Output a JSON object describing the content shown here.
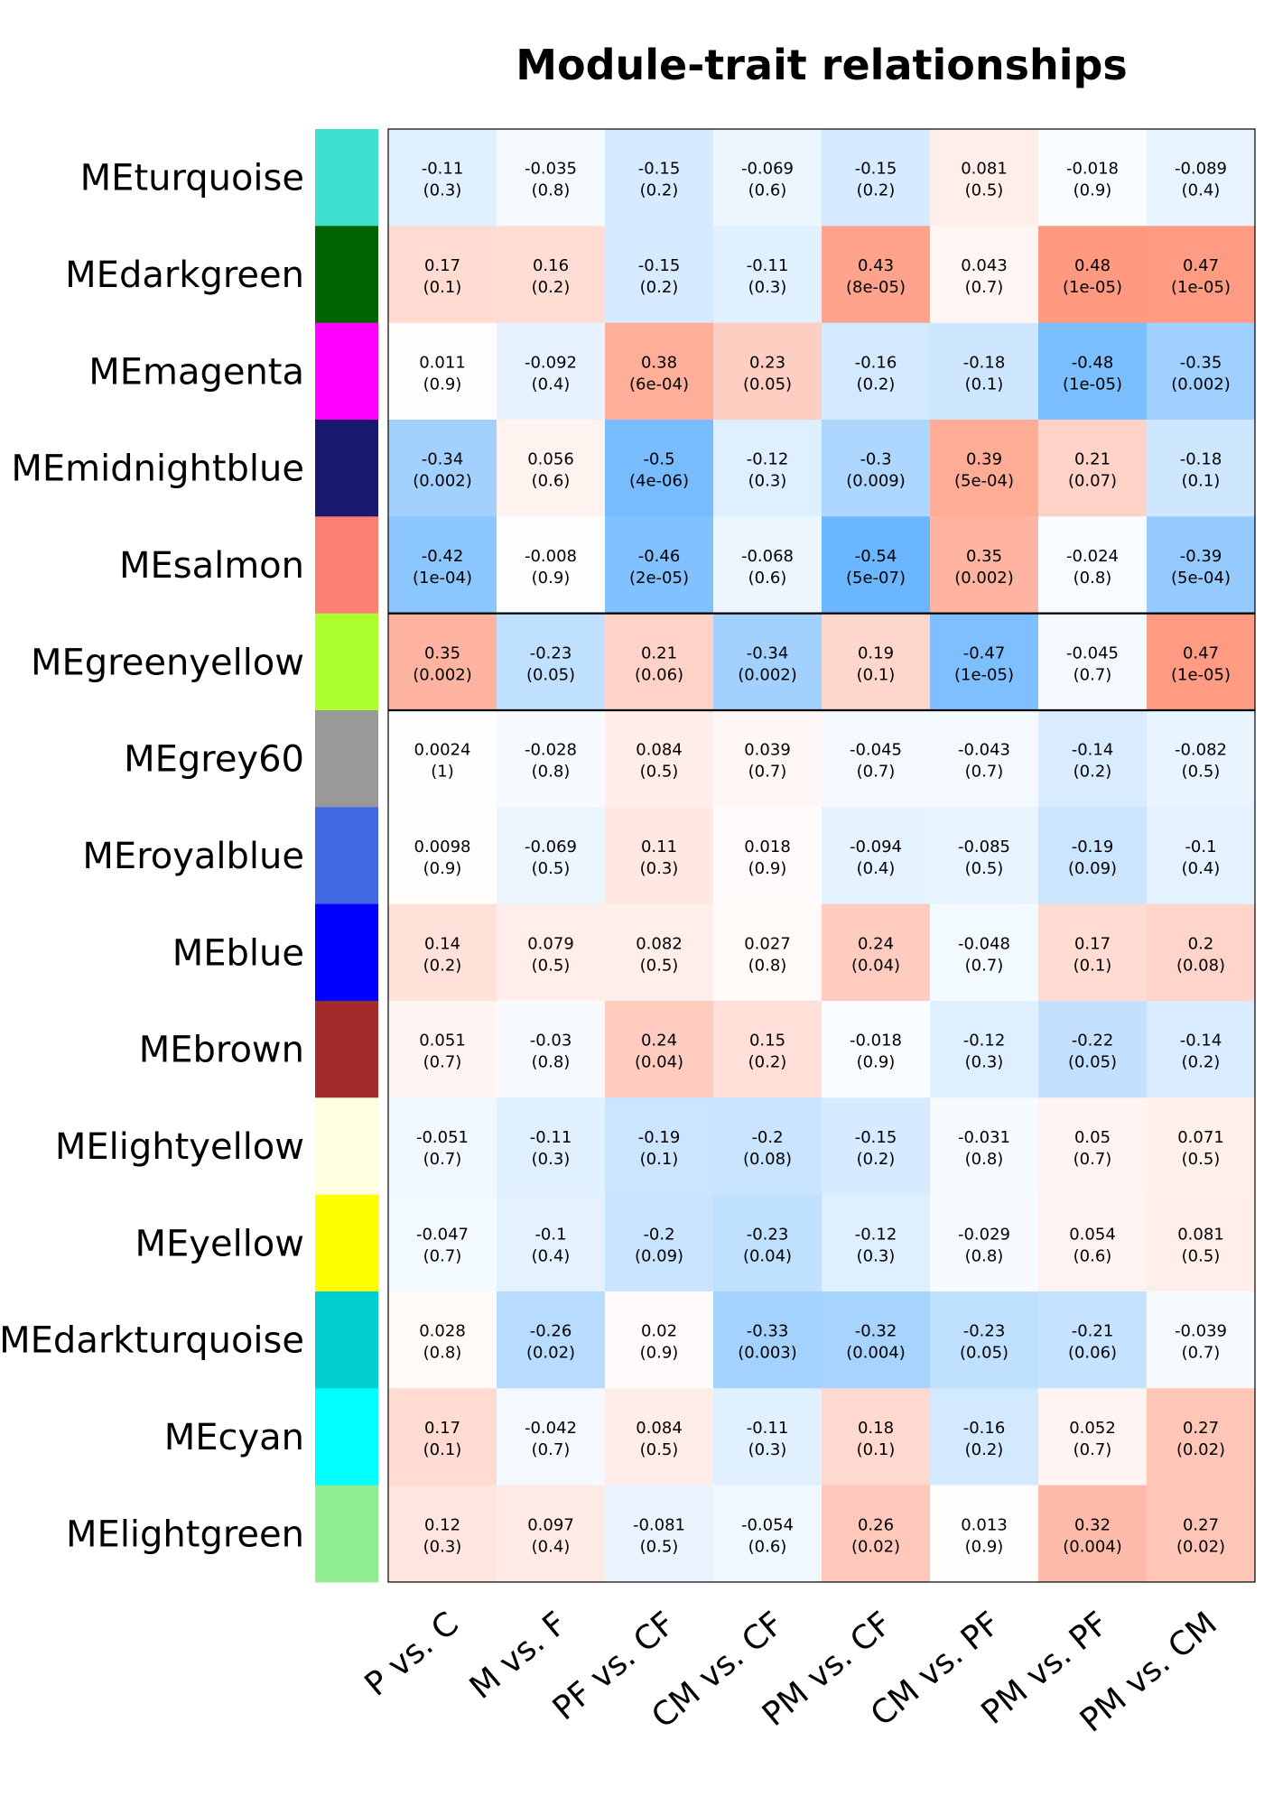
{
  "chart_data": {
    "type": "heatmap",
    "title": "Module-trait relationships",
    "rows": [
      "MEturquoise",
      "MEdarkgreen",
      "MEmagenta",
      "MEmidnightblue",
      "MEsalmon",
      "MEgreenyellow",
      "MEgrey60",
      "MEroyalblue",
      "MEblue",
      "MEbrown",
      "MElightyellow",
      "MEyellow",
      "MEdarkturquoise",
      "MEcyan",
      "MElightgreen"
    ],
    "row_colors": [
      "#40E0D0",
      "#006400",
      "#FF00FF",
      "#191970",
      "#FA8072",
      "#ADFF2F",
      "#999999",
      "#4169E1",
      "#0000FF",
      "#A52A2A",
      "#FFFFE0",
      "#FFFF00",
      "#00CED1",
      "#00FFFF",
      "#90EE90"
    ],
    "columns": [
      "P vs. C",
      "M vs. F",
      "PF vs. CF",
      "CM vs. CF",
      "PM vs. CF",
      "CM vs. PF",
      "PM vs. PF",
      "PM vs. CM"
    ],
    "values": [
      [
        "-0.11",
        "-0.035",
        "-0.15",
        "-0.069",
        "-0.15",
        "0.081",
        "-0.018",
        "-0.089"
      ],
      [
        "0.17",
        "0.16",
        "-0.15",
        "-0.11",
        "0.43",
        "0.043",
        "0.48",
        "0.47"
      ],
      [
        "0.011",
        "-0.092",
        "0.38",
        "0.23",
        "-0.16",
        "-0.18",
        "-0.48",
        "-0.35"
      ],
      [
        "-0.34",
        "0.056",
        "-0.5",
        "-0.12",
        "-0.3",
        "0.39",
        "0.21",
        "-0.18"
      ],
      [
        "-0.42",
        "-0.008",
        "-0.46",
        "-0.068",
        "-0.54",
        "0.35",
        "-0.024",
        "-0.39"
      ],
      [
        "0.35",
        "-0.23",
        "0.21",
        "-0.34",
        "0.19",
        "-0.47",
        "-0.045",
        "0.47"
      ],
      [
        "0.0024",
        "-0.028",
        "0.084",
        "0.039",
        "-0.045",
        "-0.043",
        "-0.14",
        "-0.082"
      ],
      [
        "0.0098",
        "-0.069",
        "0.11",
        "0.018",
        "-0.094",
        "-0.085",
        "-0.19",
        "-0.1"
      ],
      [
        "0.14",
        "0.079",
        "0.082",
        "0.027",
        "0.24",
        "-0.048",
        "0.17",
        "0.2"
      ],
      [
        "0.051",
        "-0.03",
        "0.24",
        "0.15",
        "-0.018",
        "-0.12",
        "-0.22",
        "-0.14"
      ],
      [
        "-0.051",
        "-0.11",
        "-0.19",
        "-0.2",
        "-0.15",
        "-0.031",
        "0.05",
        "0.071"
      ],
      [
        "-0.047",
        "-0.1",
        "-0.2",
        "-0.23",
        "-0.12",
        "-0.029",
        "0.054",
        "0.081"
      ],
      [
        "0.028",
        "-0.26",
        "0.02",
        "-0.33",
        "-0.32",
        "-0.23",
        "-0.21",
        "-0.039"
      ],
      [
        "0.17",
        "-0.042",
        "0.084",
        "-0.11",
        "0.18",
        "-0.16",
        "0.052",
        "0.27"
      ],
      [
        "0.12",
        "0.097",
        "-0.081",
        "-0.054",
        "0.26",
        "0.013",
        "0.32",
        "0.27"
      ]
    ],
    "pvalues": [
      [
        "(0.3)",
        "(0.8)",
        "(0.2)",
        "(0.6)",
        "(0.2)",
        "(0.5)",
        "(0.9)",
        "(0.4)"
      ],
      [
        "(0.1)",
        "(0.2)",
        "(0.2)",
        "(0.3)",
        "(8e-05)",
        "(0.7)",
        "(1e-05)",
        "(1e-05)"
      ],
      [
        "(0.9)",
        "(0.4)",
        "(6e-04)",
        "(0.05)",
        "(0.2)",
        "(0.1)",
        "(1e-05)",
        "(0.002)"
      ],
      [
        "(0.002)",
        "(0.6)",
        "(4e-06)",
        "(0.3)",
        "(0.009)",
        "(5e-04)",
        "(0.07)",
        "(0.1)"
      ],
      [
        "(1e-04)",
        "(0.9)",
        "(2e-05)",
        "(0.6)",
        "(5e-07)",
        "(0.002)",
        "(0.8)",
        "(5e-04)"
      ],
      [
        "(0.002)",
        "(0.05)",
        "(0.06)",
        "(0.002)",
        "(0.1)",
        "(1e-05)",
        "(0.7)",
        "(1e-05)"
      ],
      [
        "(1)",
        "(0.8)",
        "(0.5)",
        "(0.7)",
        "(0.7)",
        "(0.7)",
        "(0.2)",
        "(0.5)"
      ],
      [
        "(0.9)",
        "(0.5)",
        "(0.3)",
        "(0.9)",
        "(0.4)",
        "(0.5)",
        "(0.09)",
        "(0.4)"
      ],
      [
        "(0.2)",
        "(0.5)",
        "(0.5)",
        "(0.8)",
        "(0.04)",
        "(0.7)",
        "(0.1)",
        "(0.08)"
      ],
      [
        "(0.7)",
        "(0.8)",
        "(0.04)",
        "(0.2)",
        "(0.9)",
        "(0.3)",
        "(0.05)",
        "(0.2)"
      ],
      [
        "(0.7)",
        "(0.3)",
        "(0.1)",
        "(0.08)",
        "(0.2)",
        "(0.8)",
        "(0.7)",
        "(0.5)"
      ],
      [
        "(0.7)",
        "(0.4)",
        "(0.09)",
        "(0.04)",
        "(0.3)",
        "(0.8)",
        "(0.6)",
        "(0.5)"
      ],
      [
        "(0.8)",
        "(0.02)",
        "(0.9)",
        "(0.003)",
        "(0.004)",
        "(0.05)",
        "(0.06)",
        "(0.7)"
      ],
      [
        "(0.1)",
        "(0.7)",
        "(0.5)",
        "(0.3)",
        "(0.1)",
        "(0.2)",
        "(0.7)",
        "(0.02)"
      ],
      [
        "(0.3)",
        "(0.4)",
        "(0.5)",
        "(0.6)",
        "(0.02)",
        "(0.9)",
        "(0.004)",
        "(0.02)"
      ]
    ],
    "color_scale": {
      "negative": "#5AAEFF",
      "zero": "#FFFFFF",
      "positive": "#FF7F5F",
      "range": [
        -0.6,
        0.6
      ]
    },
    "highlighted_row": "MEgreenyellow",
    "grid": false
  }
}
